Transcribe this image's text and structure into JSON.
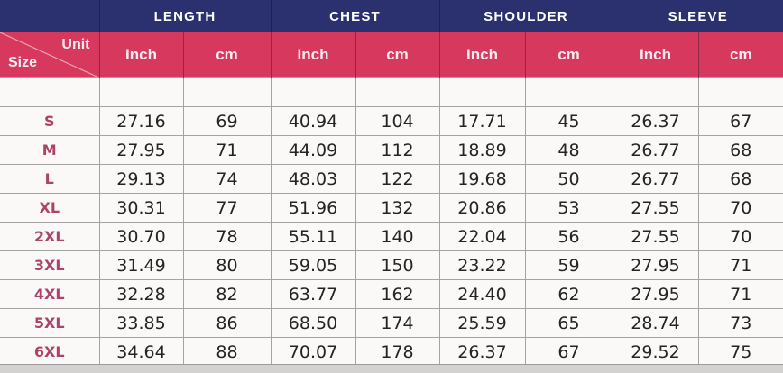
{
  "table": {
    "corner": {
      "unit_label": "Unit",
      "size_label": "Size"
    },
    "groups": [
      {
        "label": "LENGTH"
      },
      {
        "label": "CHEST"
      },
      {
        "label": "SHOULDER"
      },
      {
        "label": "SLEEVE"
      }
    ],
    "unit_headers": [
      "Inch",
      "cm",
      "Inch",
      "cm",
      "Inch",
      "cm",
      "Inch",
      "cm"
    ],
    "rows": [
      {
        "size": "S",
        "values": [
          "27.16",
          "69",
          "40.94",
          "104",
          "17.71",
          "45",
          "26.37",
          "67"
        ]
      },
      {
        "size": "M",
        "values": [
          "27.95",
          "71",
          "44.09",
          "112",
          "18.89",
          "48",
          "26.77",
          "68"
        ]
      },
      {
        "size": "L",
        "values": [
          "29.13",
          "74",
          "48.03",
          "122",
          "19.68",
          "50",
          "26.77",
          "68"
        ]
      },
      {
        "size": "XL",
        "values": [
          "30.31",
          "77",
          "51.96",
          "132",
          "20.86",
          "53",
          "27.55",
          "70"
        ]
      },
      {
        "size": "2XL",
        "values": [
          "30.70",
          "78",
          "55.11",
          "140",
          "22.04",
          "56",
          "27.55",
          "70"
        ]
      },
      {
        "size": "3XL",
        "values": [
          "31.49",
          "80",
          "59.05",
          "150",
          "23.22",
          "59",
          "27.95",
          "71"
        ]
      },
      {
        "size": "4XL",
        "values": [
          "32.28",
          "82",
          "63.77",
          "162",
          "24.40",
          "62",
          "27.95",
          "71"
        ]
      },
      {
        "size": "5XL",
        "values": [
          "33.85",
          "86",
          "68.50",
          "174",
          "25.59",
          "65",
          "28.74",
          "73"
        ]
      },
      {
        "size": "6XL",
        "values": [
          "34.64",
          "88",
          "70.07",
          "178",
          "26.37",
          "67",
          "29.52",
          "75"
        ]
      }
    ],
    "colors": {
      "navy": "#2b316e",
      "crimson": "#d6395d",
      "size_text": "#ad436a",
      "data_text": "#242424",
      "grid": "#a3a3a3"
    }
  },
  "chart_data": {
    "type": "table",
    "column_groups": [
      "LENGTH",
      "CHEST",
      "SHOULDER",
      "SLEEVE"
    ],
    "columns": [
      "Size",
      "Length (Inch)",
      "Length (cm)",
      "Chest (Inch)",
      "Chest (cm)",
      "Shoulder (Inch)",
      "Shoulder (cm)",
      "Sleeve (Inch)",
      "Sleeve (cm)"
    ],
    "rows": [
      [
        "S",
        27.16,
        69,
        40.94,
        104,
        17.71,
        45,
        26.37,
        67
      ],
      [
        "M",
        27.95,
        71,
        44.09,
        112,
        18.89,
        48,
        26.77,
        68
      ],
      [
        "L",
        29.13,
        74,
        48.03,
        122,
        19.68,
        50,
        26.77,
        68
      ],
      [
        "XL",
        30.31,
        77,
        51.96,
        132,
        20.86,
        53,
        27.55,
        70
      ],
      [
        "2XL",
        30.7,
        78,
        55.11,
        140,
        22.04,
        56,
        27.55,
        70
      ],
      [
        "3XL",
        31.49,
        80,
        59.05,
        150,
        23.22,
        59,
        27.95,
        71
      ],
      [
        "4XL",
        32.28,
        82,
        63.77,
        162,
        24.4,
        62,
        27.95,
        71
      ],
      [
        "5XL",
        33.85,
        86,
        68.5,
        174,
        25.59,
        65,
        28.74,
        73
      ],
      [
        "6XL",
        34.64,
        88,
        70.07,
        178,
        26.37,
        67,
        29.52,
        75
      ]
    ]
  }
}
